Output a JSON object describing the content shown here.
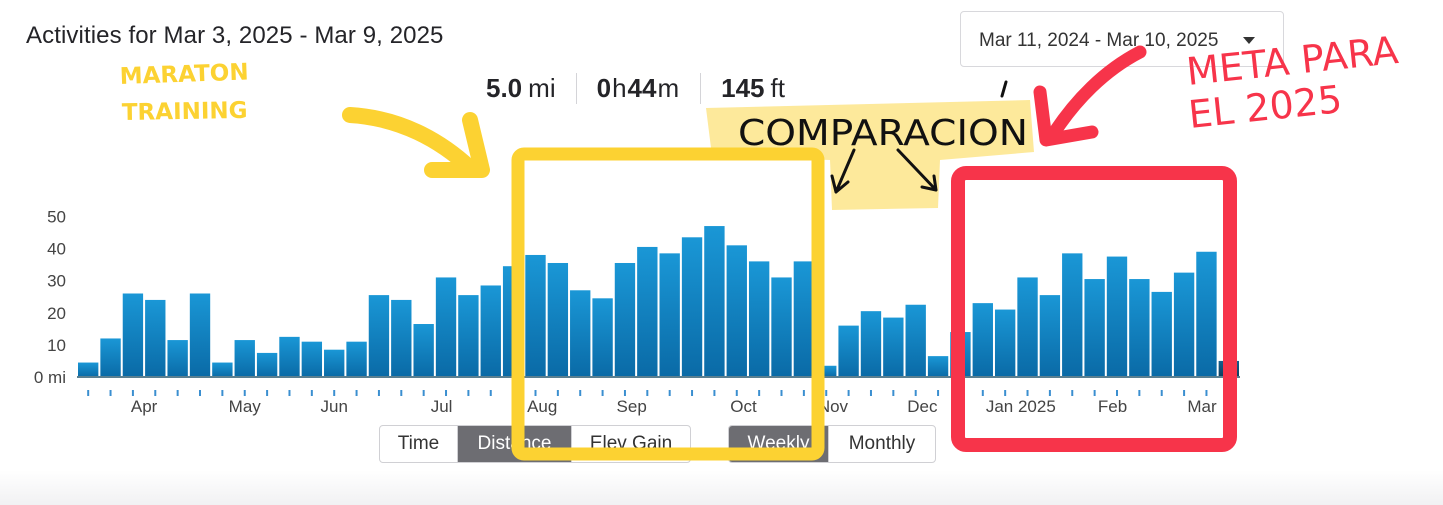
{
  "header": {
    "title": "Activities for Mar 3, 2025 - Mar 9, 2025",
    "date_range": "Mar 11, 2024 - Mar 10, 2025"
  },
  "stats": {
    "distance_value": "5.0",
    "distance_unit": "mi",
    "time_hours": "0",
    "time_hours_unit": "h",
    "time_minutes": "44",
    "time_minutes_unit": "m",
    "elev_value": "145",
    "elev_unit": "ft"
  },
  "metric_toggle": {
    "time": "Time",
    "distance": "Distance",
    "elev_gain": "Elev Gain",
    "active": "distance"
  },
  "period_toggle": {
    "weekly": "Weekly",
    "monthly": "Monthly",
    "active": "weekly"
  },
  "annotations": {
    "maraton_line1": "MARATON",
    "maraton_line2": "TRAINING",
    "comparacion": "COMPARACION",
    "meta_line1": "META PARA",
    "meta_line2": "EL  2025"
  },
  "colors": {
    "bar": "#1a97d6",
    "bar_dark": "#0a6aa6",
    "bar_current": "#0d3d5c",
    "yellow_marker": "#fcd232",
    "yellow_highlight": "#fde58a",
    "red_marker": "#f7344a"
  },
  "chart_data": {
    "type": "bar",
    "y_unit": "mi",
    "ylim": [
      0,
      52
    ],
    "y_ticks": [
      {
        "value": 0,
        "label": "0 mi"
      },
      {
        "value": 10,
        "label": "10"
      },
      {
        "value": 20,
        "label": "20"
      },
      {
        "value": 30,
        "label": "30"
      },
      {
        "value": 40,
        "label": "40"
      },
      {
        "value": 50,
        "label": "50"
      }
    ],
    "x_labels": [
      {
        "label": "Apr",
        "week_index": 3
      },
      {
        "label": "May",
        "week_index": 7.5
      },
      {
        "label": "Jun",
        "week_index": 11.5
      },
      {
        "label": "Jul",
        "week_index": 16.3
      },
      {
        "label": "Aug",
        "week_index": 20.8
      },
      {
        "label": "Sep",
        "week_index": 24.8
      },
      {
        "label": "Oct",
        "week_index": 29.8
      },
      {
        "label": "Nov",
        "week_index": 33.8
      },
      {
        "label": "Dec",
        "week_index": 37.8
      },
      {
        "label": "Jan 2025",
        "week_index": 42.2
      },
      {
        "label": "Feb",
        "week_index": 46.3
      },
      {
        "label": "Mar",
        "week_index": 50.3
      }
    ],
    "weekly_distance_mi": [
      4.5,
      12,
      26,
      24,
      11.5,
      26,
      4.5,
      11.5,
      7.5,
      12.5,
      11,
      8.5,
      11,
      25.5,
      24,
      16.5,
      31,
      25.5,
      28.5,
      34.5,
      38,
      35.5,
      27,
      24.5,
      35.5,
      40.5,
      38.5,
      43.5,
      47,
      41,
      36,
      31,
      36,
      3.5,
      16,
      20.5,
      18.5,
      22.5,
      6.5,
      14,
      23,
      21,
      31,
      25.5,
      38.5,
      30.5,
      37.5,
      30.5,
      26.5,
      32.5,
      39,
      5
    ],
    "current_week_index": 51,
    "grid": false,
    "legend": "none"
  }
}
